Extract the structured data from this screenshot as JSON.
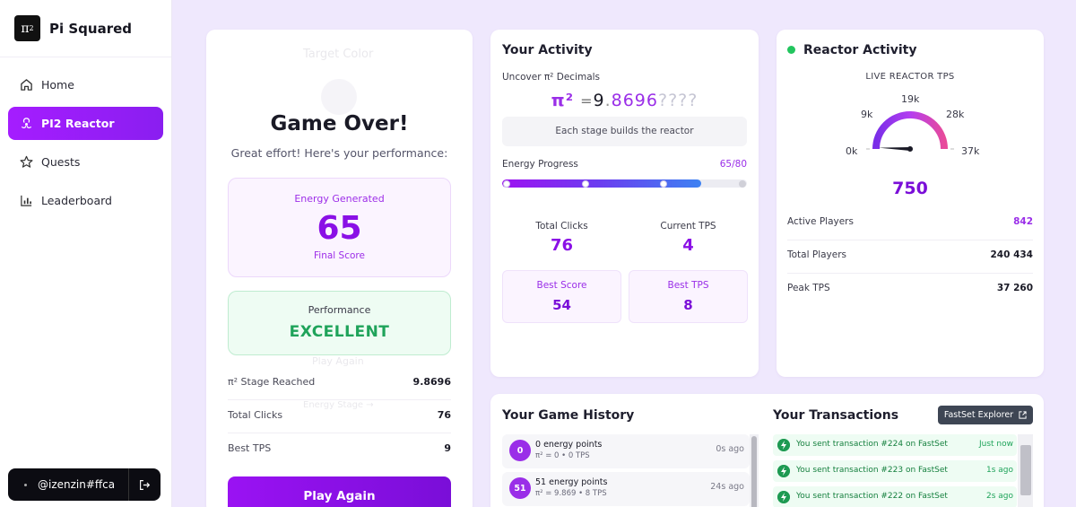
{
  "brand": {
    "logo": "π",
    "logo_sup": "2",
    "name": "Pi Squared"
  },
  "sidebar": {
    "items": [
      {
        "label": "Home",
        "icon": "home-icon",
        "active": false
      },
      {
        "label": "PI2 Reactor",
        "icon": "reactor-icon",
        "active": true
      },
      {
        "label": "Quests",
        "icon": "star-icon",
        "active": false
      },
      {
        "label": "Leaderboard",
        "icon": "bar-chart-icon",
        "active": false
      }
    ],
    "user": "@izenzin#ffca"
  },
  "game_over": {
    "ghost_title": "Target Color",
    "ghost_button": "Play Again",
    "ghost_text": "Energy Stage →",
    "title": "Game Over!",
    "subtitle": "Great effort! Here's your performance:",
    "energy_label": "Energy Generated",
    "energy_value": "65",
    "energy_foot": "Final Score",
    "performance_label": "Performance",
    "performance_value": "EXCELLENT",
    "stats": [
      {
        "label": "π² Stage Reached",
        "value": "9.8696"
      },
      {
        "label": "Total Clicks",
        "value": "76"
      },
      {
        "label": "Best TPS",
        "value": "9"
      }
    ],
    "play_again": "Play Again"
  },
  "activity": {
    "title": "Your Activity",
    "uncover_label": "Uncover π² Decimals",
    "pi_symbol": "π²",
    "pi_eq": "=",
    "pi_int": "9",
    "pi_dot": ".",
    "pi_digits": "8696",
    "pi_unknown": "????",
    "stage_note": "Each stage builds the reactor",
    "energy_label": "Energy Progress",
    "energy_value": "65/80",
    "energy_fraction": 0.8125,
    "total_clicks_label": "Total Clicks",
    "total_clicks": "76",
    "current_tps_label": "Current TPS",
    "current_tps": "4",
    "best_score_label": "Best Score",
    "best_score": "54",
    "best_tps_label": "Best TPS",
    "best_tps": "8"
  },
  "reactor": {
    "title": "Reactor Activity",
    "status_color": "#22c55e",
    "live_label": "LIVE REACTOR TPS",
    "ticks": [
      "0k",
      "9k",
      "19k",
      "28k",
      "37k"
    ],
    "gauge_max": 37000,
    "tps_value": "750",
    "rows": [
      {
        "label": "Active Players",
        "value": "842",
        "accent": true
      },
      {
        "label": "Total Players",
        "value": "240 434",
        "accent": false
      },
      {
        "label": "Peak TPS",
        "value": "37 260",
        "accent": false
      }
    ]
  },
  "history": {
    "title": "Your Game History",
    "items": [
      {
        "badge": "0",
        "main": "0 energy points",
        "sub": "π² = 0 • 0 TPS",
        "time": "0s ago"
      },
      {
        "badge": "51",
        "main": "51 energy points",
        "sub": "π² = 9.869 • 8 TPS",
        "time": "24s ago"
      }
    ]
  },
  "transactions": {
    "title": "Your Transactions",
    "explorer_label": "FastSet Explorer",
    "items": [
      {
        "text": "You sent transaction #224 on FastSet",
        "time": "Just now"
      },
      {
        "text": "You sent transaction #223 on FastSet",
        "time": "1s ago"
      },
      {
        "text": "You sent transaction #222 on FastSet",
        "time": "2s ago"
      }
    ]
  }
}
